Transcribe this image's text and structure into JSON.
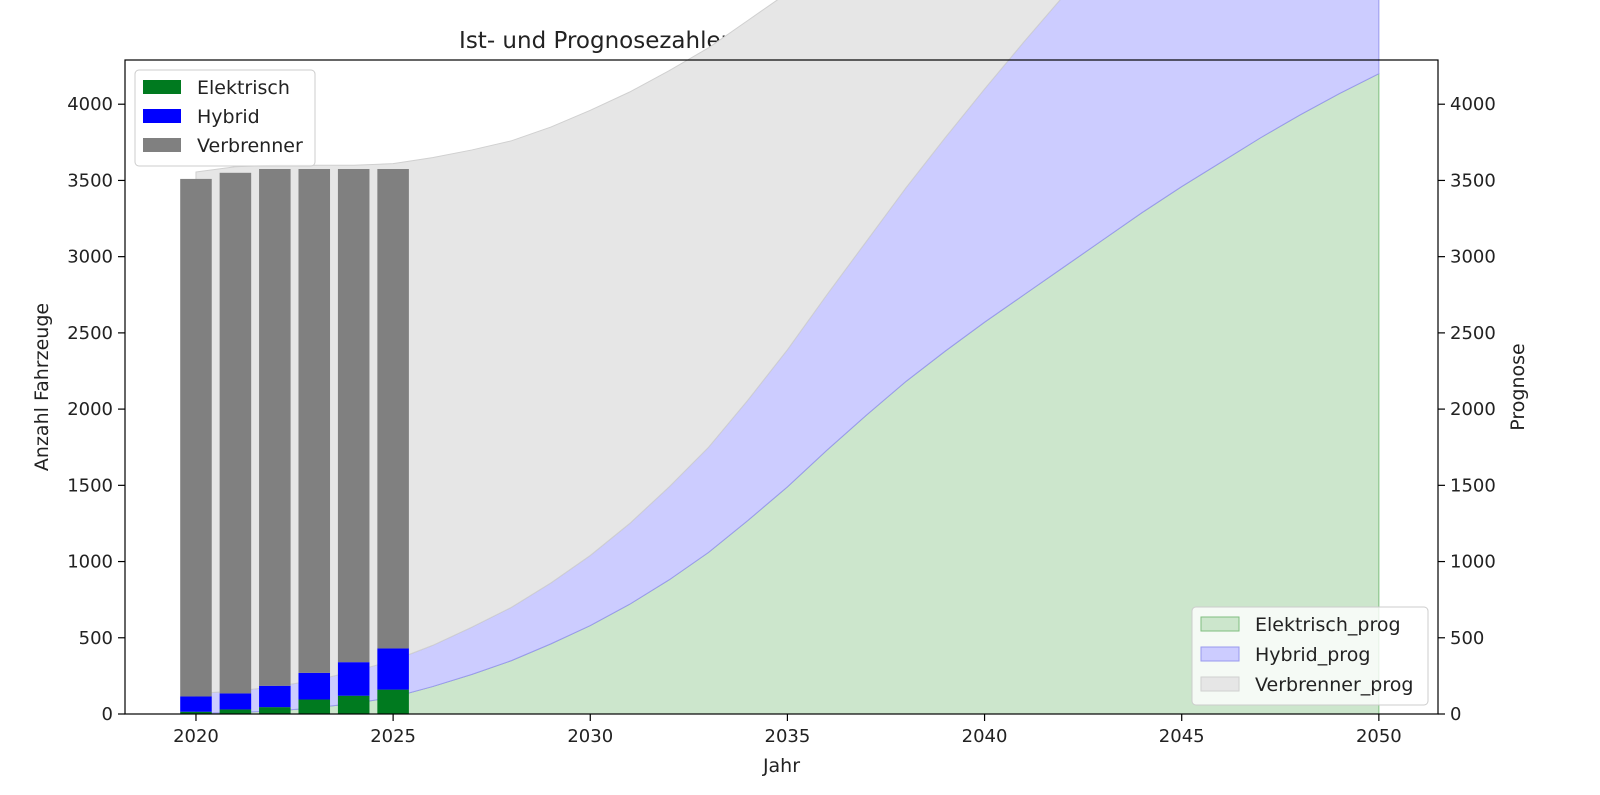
{
  "chart_data": {
    "type": "bar",
    "title": "Ist- und Prognosezahlen für Antriebsarten in Walenstadt",
    "xlabel": "Jahr",
    "ylabel": "Anzahl Fahrzeuge",
    "ylabel_right": "Prognose",
    "xlim": [
      2018.2,
      2051.5
    ],
    "ylim": [
      0,
      4290
    ],
    "x_ticks": [
      2020,
      2025,
      2030,
      2035,
      2040,
      2045,
      2050
    ],
    "y_ticks": [
      0,
      500,
      1000,
      1500,
      2000,
      2500,
      3000,
      3500,
      4000
    ],
    "grid": false,
    "bars": {
      "x": [
        2020,
        2021,
        2022,
        2023,
        2024,
        2025
      ],
      "series": [
        {
          "name": "Elektrisch",
          "color": "#007a1f",
          "values": [
            15,
            30,
            45,
            95,
            120,
            160
          ]
        },
        {
          "name": "Hybrid",
          "color": "#0000ff",
          "values": [
            100,
            105,
            140,
            175,
            220,
            270
          ]
        },
        {
          "name": "Verbrenner",
          "color": "#808080",
          "values": [
            3395,
            3415,
            3390,
            3305,
            3235,
            3145
          ]
        }
      ],
      "legend_position": "upper-left"
    },
    "forecast": {
      "x": [
        2020,
        2021,
        2022,
        2023,
        2024,
        2025,
        2026,
        2027,
        2028,
        2029,
        2030,
        2031,
        2032,
        2033,
        2034,
        2035,
        2036,
        2037,
        2038,
        2039,
        2040,
        2041,
        2042,
        2043,
        2044,
        2045,
        2046,
        2047,
        2048,
        2049,
        2050
      ],
      "series": [
        {
          "name": "Elektrisch_prog",
          "fill": "#cce6cc",
          "edge": "#7fbf7f",
          "values": [
            5,
            10,
            20,
            40,
            70,
            110,
            180,
            260,
            350,
            460,
            580,
            720,
            880,
            1060,
            1270,
            1490,
            1730,
            1960,
            2180,
            2380,
            2570,
            2750,
            2930,
            3110,
            3290,
            3460,
            3620,
            3780,
            3930,
            4070,
            4200
          ]
        },
        {
          "name": "Hybrid_prog",
          "fill": "#ccccff",
          "edge": "#9999ee",
          "values": [
            130,
            140,
            160,
            180,
            210,
            240,
            270,
            310,
            350,
            400,
            460,
            530,
            610,
            690,
            790,
            900,
            1020,
            1140,
            1270,
            1400,
            1530,
            1660,
            1780,
            1900,
            2010,
            2120,
            2230,
            2330,
            2430,
            2530,
            2620
          ]
        },
        {
          "name": "Verbrenner_prog",
          "fill": "#e6e6e6",
          "edge": "#d0d0d0",
          "values": [
            3420,
            3440,
            3420,
            3380,
            3320,
            3260,
            3200,
            3130,
            3060,
            2990,
            2920,
            2830,
            2730,
            2620,
            2490,
            2340,
            2190,
            2030,
            1870,
            1720,
            1580,
            1440,
            1310,
            1180,
            1050,
            930,
            810,
            700,
            590,
            480,
            380
          ]
        }
      ],
      "legend_position": "lower-right"
    }
  }
}
